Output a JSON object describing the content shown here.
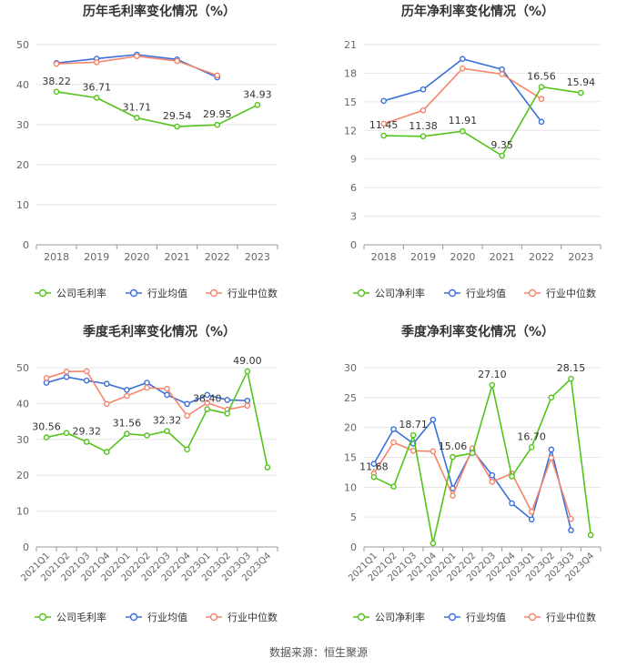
{
  "footer": {
    "source": "数据来源：恒生聚源"
  },
  "colors": {
    "company": "#52c41a",
    "avg": "#3a6fdc",
    "median": "#f5856a",
    "axis": "#999999",
    "grid": "#e6e6e6",
    "text": "#666666"
  },
  "chart_data": [
    {
      "type": "line",
      "title": "历年毛利率变化情况（%）",
      "categories": [
        "2018",
        "2019",
        "2020",
        "2021",
        "2022",
        "2023"
      ],
      "ylim": [
        0,
        50
      ],
      "yticks": [
        0,
        10,
        20,
        30,
        40,
        50
      ],
      "series": [
        {
          "name": "公司毛利率",
          "key": "company",
          "values": [
            38.22,
            36.71,
            31.71,
            29.54,
            29.95,
            34.93
          ],
          "labels": [
            "38.22",
            "36.71",
            "31.71",
            "29.54",
            "29.95",
            "34.93"
          ]
        },
        {
          "name": "行业均值",
          "key": "avg",
          "values": [
            45.4,
            46.5,
            47.5,
            46.3,
            41.8,
            null
          ]
        },
        {
          "name": "行业中位数",
          "key": "median",
          "values": [
            45.2,
            45.6,
            47.1,
            45.9,
            42.3,
            null
          ]
        }
      ],
      "legend": "bottom"
    },
    {
      "type": "line",
      "title": "历年净利率变化情况（%）",
      "categories": [
        "2018",
        "2019",
        "2020",
        "2021",
        "2022",
        "2023"
      ],
      "ylim": [
        0,
        21
      ],
      "yticks": [
        0,
        3,
        6,
        9,
        12,
        15,
        18,
        21
      ],
      "series": [
        {
          "name": "公司净利率",
          "key": "company",
          "values": [
            11.45,
            11.38,
            11.91,
            9.35,
            16.56,
            15.94
          ],
          "labels": [
            "11.45",
            "11.38",
            "11.91",
            "9.35",
            "16.56",
            "15.94"
          ]
        },
        {
          "name": "行业均值",
          "key": "avg",
          "values": [
            15.1,
            16.3,
            19.5,
            18.4,
            12.9,
            null
          ]
        },
        {
          "name": "行业中位数",
          "key": "median",
          "values": [
            12.7,
            14.1,
            18.5,
            17.9,
            15.3,
            null
          ]
        }
      ],
      "legend": "bottom"
    },
    {
      "type": "line",
      "title": "季度毛利率变化情况（%）",
      "categories": [
        "2021Q1",
        "2021Q2",
        "2021Q3",
        "2021Q4",
        "2022Q1",
        "2022Q2",
        "2022Q3",
        "2022Q4",
        "2023Q1",
        "2023Q2",
        "2023Q3",
        "2023Q4"
      ],
      "ylim": [
        0,
        50
      ],
      "yticks": [
        0,
        10,
        20,
        30,
        40,
        50
      ],
      "series": [
        {
          "name": "公司毛利率",
          "key": "company",
          "values": [
            30.56,
            31.8,
            29.32,
            26.5,
            31.56,
            31.1,
            32.32,
            27.2,
            38.4,
            37.2,
            49.0,
            22.2
          ],
          "labels": [
            "30.56",
            "",
            "29.32",
            "",
            "31.56",
            "",
            "32.32",
            "",
            "38.40",
            "",
            "49.00",
            ""
          ]
        },
        {
          "name": "行业均值",
          "key": "avg",
          "values": [
            45.8,
            47.4,
            46.4,
            45.5,
            43.8,
            45.8,
            42.4,
            39.9,
            42.4,
            41.0,
            40.8,
            null
          ]
        },
        {
          "name": "行业中位数",
          "key": "median",
          "values": [
            47.1,
            48.9,
            49.0,
            39.9,
            42.1,
            44.4,
            44.1,
            36.6,
            40.2,
            38.3,
            39.4,
            null
          ]
        }
      ],
      "legend": "bottom"
    },
    {
      "type": "line",
      "title": "季度净利率变化情况（%）",
      "categories": [
        "2021Q1",
        "2021Q2",
        "2021Q3",
        "2021Q4",
        "2022Q1",
        "2022Q2",
        "2022Q3",
        "2022Q4",
        "2023Q1",
        "2023Q2",
        "2023Q3",
        "2023Q4"
      ],
      "ylim": [
        0,
        30
      ],
      "yticks": [
        0,
        5,
        10,
        15,
        20,
        25,
        30
      ],
      "series": [
        {
          "name": "公司净利率",
          "key": "company",
          "values": [
            11.68,
            10.1,
            18.71,
            0.6,
            15.06,
            15.7,
            27.1,
            11.8,
            16.7,
            25.0,
            28.15,
            2.0
          ],
          "labels": [
            "11.68",
            "",
            "18.71",
            "",
            "15.06",
            "",
            "27.10",
            "",
            "16.70",
            "",
            "28.15",
            ""
          ]
        },
        {
          "name": "行业均值",
          "key": "avg",
          "values": [
            13.9,
            19.7,
            17.3,
            21.3,
            9.8,
            16.2,
            12.0,
            7.3,
            4.6,
            16.3,
            2.8,
            null
          ]
        },
        {
          "name": "行业中位数",
          "key": "median",
          "values": [
            12.3,
            17.5,
            16.1,
            16.0,
            8.6,
            16.5,
            10.9,
            12.3,
            5.9,
            14.9,
            4.7,
            null
          ]
        }
      ],
      "legend": "bottom"
    }
  ]
}
